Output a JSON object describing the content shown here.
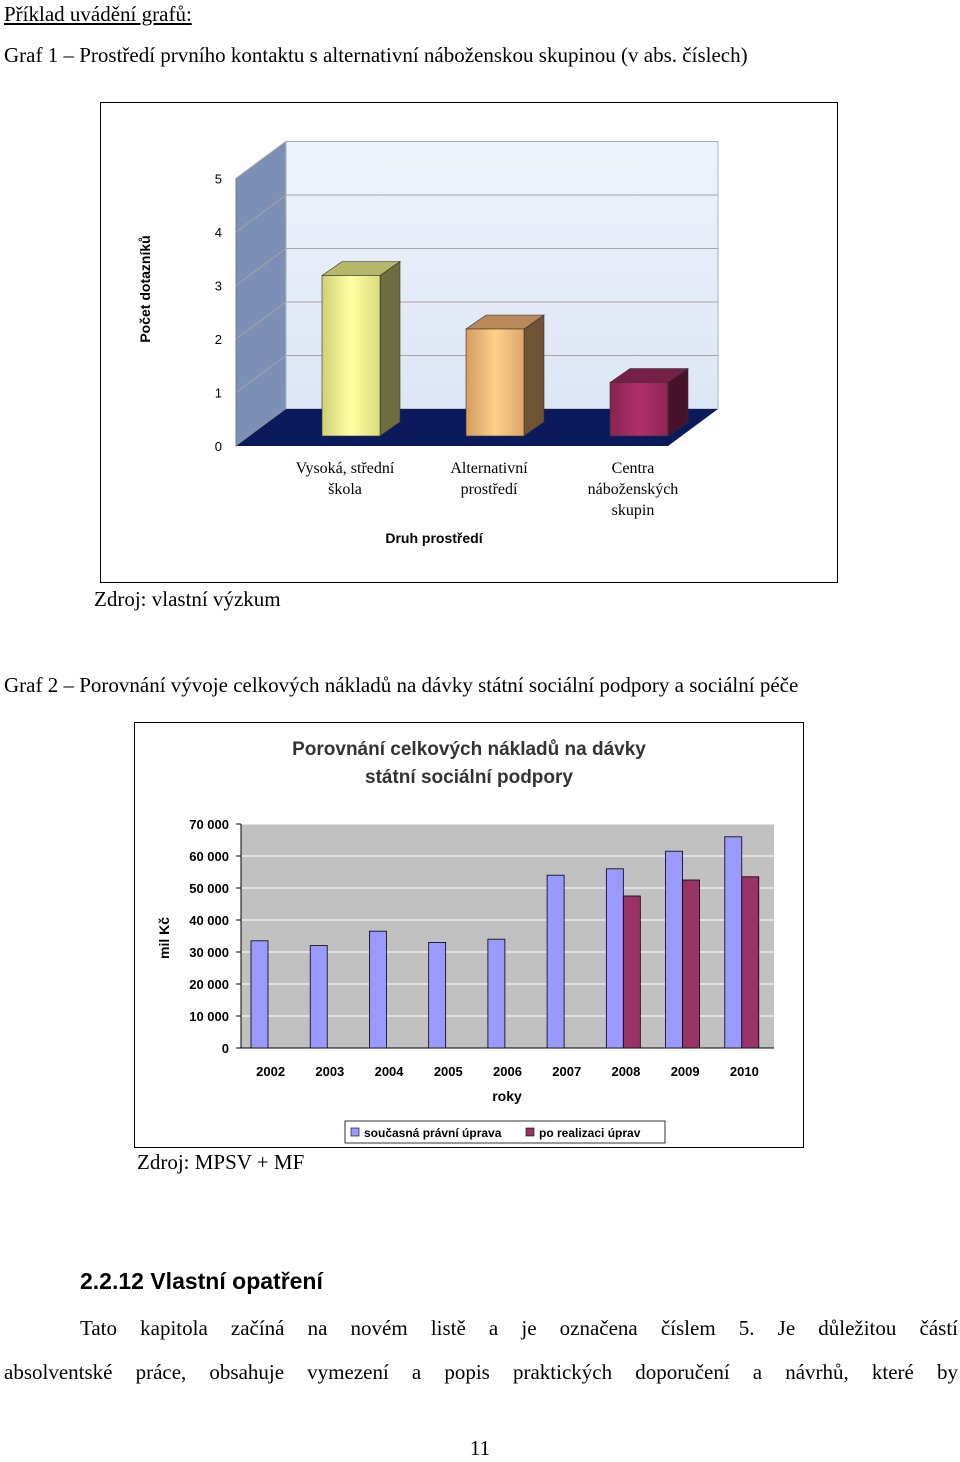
{
  "header": {
    "example_title": "Příklad uvádění grafů:"
  },
  "figure1": {
    "caption": "Graf 1 – Prostředí prvního kontaktu s alternativní náboženskou skupinou (v abs. číslech)",
    "source": "Zdroj: vlastní výzkum",
    "colors": {
      "wall": "#dde6f5",
      "floor": "#0a1a5c",
      "bar1": "#f3f38c",
      "bar2": "#f8b676",
      "bar3": "#9c2a5e"
    },
    "chart_data": {
      "type": "bar",
      "categories": [
        [
          "Vysoká, střední",
          "škola"
        ],
        [
          "Alternativní",
          "prostředí"
        ],
        [
          "Centra",
          "náboženských",
          "skupin"
        ]
      ],
      "values": [
        3,
        2,
        1
      ],
      "ylabel": "Počet dotazníků",
      "xlabel": "Druh prostředí",
      "ylim": [
        0,
        5
      ],
      "yticks": [
        "0",
        "1",
        "2",
        "3",
        "4",
        "5"
      ],
      "grid": true,
      "style": "3d"
    }
  },
  "figure2": {
    "caption": "Graf 2 – Porovnání vývoje celkových nákladů na dávky státní sociální podpory a sociální péče",
    "source": "Zdroj: MPSV + MF",
    "colors": {
      "series1": "#9999ff",
      "series2": "#993366",
      "plot_bg": "#c0c0c0"
    },
    "chart_data": {
      "type": "bar",
      "title": [
        "Porovnání celkových nákladů na dávky",
        "státní sociální podpory"
      ],
      "categories": [
        "2002",
        "2003",
        "2004",
        "2005",
        "2006",
        "2007",
        "2008",
        "2009",
        "2010"
      ],
      "series": [
        {
          "name": "současná právní úprava",
          "values": [
            33500,
            32000,
            36500,
            33000,
            34000,
            54000,
            56000,
            61500,
            66000
          ]
        },
        {
          "name": "po realizaci úprav",
          "values": [
            null,
            null,
            null,
            null,
            null,
            null,
            47500,
            52500,
            53500
          ]
        }
      ],
      "xlabel": "roky",
      "ylabel": "mil Kč",
      "ylim": [
        0,
        70000
      ],
      "yticks": [
        "0",
        "10 000",
        "20 000",
        "30 000",
        "40 000",
        "50 000",
        "60 000",
        "70 000"
      ],
      "grid": true,
      "legend": "bottom"
    }
  },
  "section": {
    "number_title": "2.2.12 Vlastní opatření",
    "line1": "Tato kapitola začíná na novém listě a je označena číslem 5. Je důležitou částí",
    "line2": "absolventské práce, obsahuje vymezení a popis praktických doporučení a návrhů, které by"
  },
  "page_number": "11"
}
